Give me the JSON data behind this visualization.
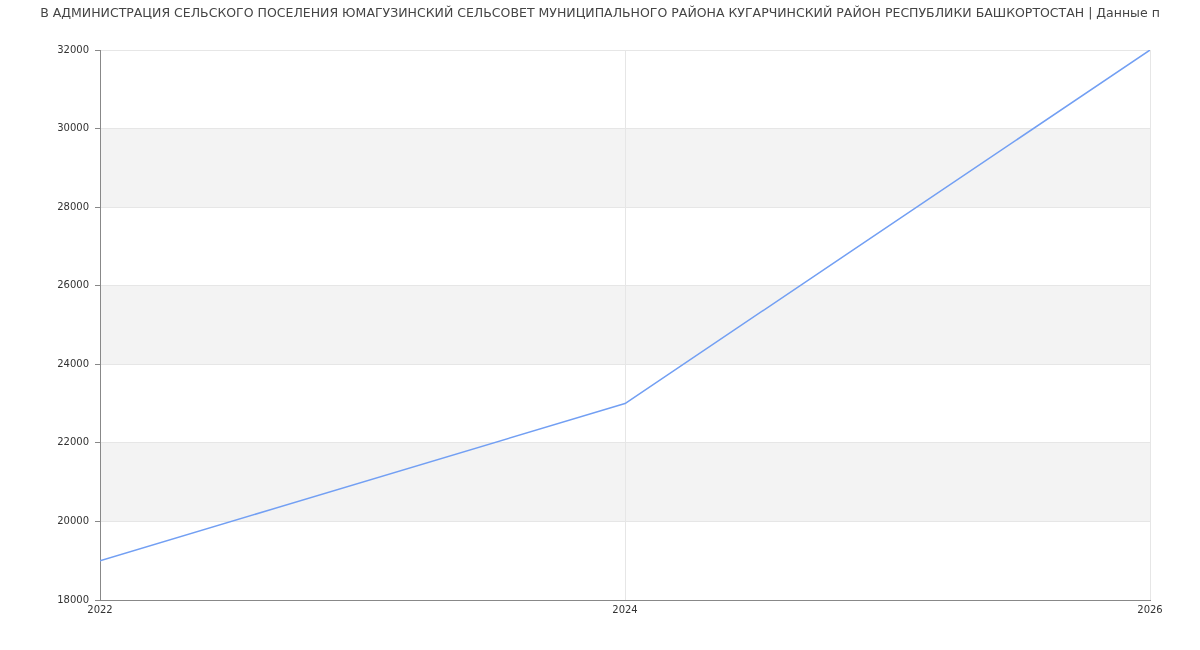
{
  "chart_data": {
    "type": "line",
    "title": "В АДМИНИСТРАЦИЯ СЕЛЬСКОГО ПОСЕЛЕНИЯ ЮМАГУЗИНСКИЙ СЕЛЬСОВЕТ МУНИЦИПАЛЬНОГО РАЙОНА КУГАРЧИНСКИЙ РАЙОН РЕСПУБЛИКИ БАШКОРТОСТАН | Данные п",
    "x": [
      2022,
      2024,
      2026
    ],
    "series": [
      {
        "color": "#729ff3",
        "values": [
          19000,
          23000,
          32000
        ]
      }
    ],
    "xlim": [
      2022,
      2026
    ],
    "xticks": [
      2022,
      2024,
      2026
    ],
    "ylim": [
      18000,
      32000
    ],
    "yticks": [
      18000,
      20000,
      22000,
      24000,
      26000,
      28000,
      30000,
      32000
    ],
    "grid": true,
    "marker": "none"
  }
}
